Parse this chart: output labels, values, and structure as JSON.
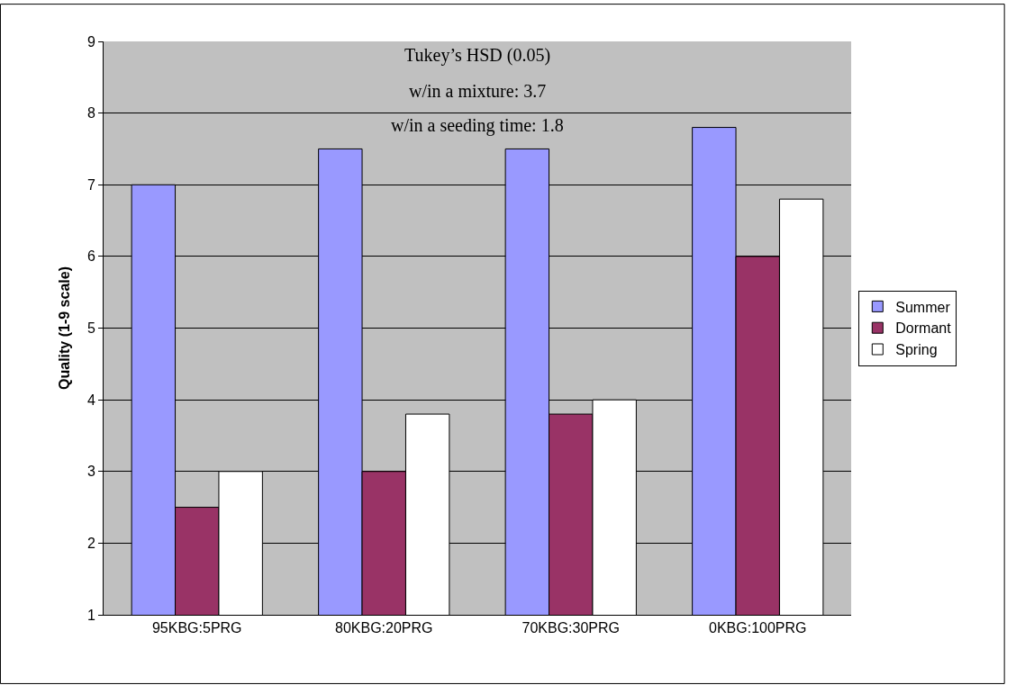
{
  "chart_data": {
    "type": "bar",
    "ylabel": "Quality (1-9 scale)",
    "categories": [
      "95KBG:5PRG",
      "80KBG:20PRG",
      "70KBG:30PRG",
      "0KBG:100PRG"
    ],
    "series": [
      {
        "name": "Summer",
        "color": "#9999ff",
        "values": [
          7,
          7.5,
          7.5,
          7.8
        ]
      },
      {
        "name": "Dormant",
        "color": "#993366",
        "values": [
          2.5,
          3,
          3.8,
          6
        ]
      },
      {
        "name": "Spring",
        "color": "#ffffff",
        "values": [
          3,
          3.8,
          4,
          6.8
        ]
      }
    ],
    "ylim": [
      1,
      9
    ],
    "yticks": [
      1,
      2,
      3,
      4,
      5,
      6,
      7,
      8,
      9
    ],
    "grid": "y",
    "legend": "right",
    "annotations": [
      "Tukey’s HSD (0.05)",
      "w/in a mixture: 3.7",
      "w/in a seeding time: 1.8"
    ]
  }
}
